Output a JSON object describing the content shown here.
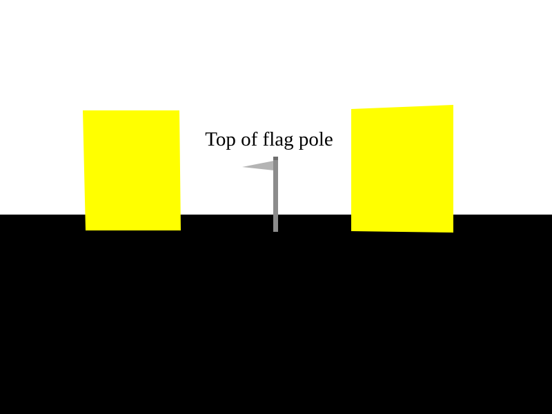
{
  "scene": {
    "label": "Top of flag pole",
    "colors": {
      "sky": "#ffffff",
      "ground": "#000000",
      "panel": "#ffff00",
      "pole": "#8c8c8c",
      "pole_top": "#6e6e6e",
      "flag": "#b4b4b4"
    }
  }
}
